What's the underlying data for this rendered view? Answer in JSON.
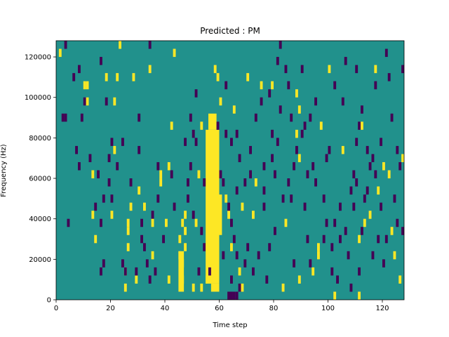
{
  "chart_data": {
    "type": "heatmap",
    "title": "Predicted : PM",
    "xlabel": "Time step",
    "ylabel": "Frequency (Hz)",
    "xlim": [
      0,
      128
    ],
    "ylim": [
      0,
      128000
    ],
    "x_ticks": [
      0,
      20,
      40,
      60,
      80,
      100,
      120
    ],
    "x_tick_labels": [
      "0",
      "20",
      "40",
      "60",
      "80",
      "100",
      "120"
    ],
    "y_ticks": [
      0,
      20000,
      40000,
      60000,
      80000,
      100000,
      120000
    ],
    "y_tick_labels": [
      "0",
      "20000",
      "40000",
      "60000",
      "80000",
      "100000",
      "120000"
    ],
    "background_value": 0,
    "colors": {
      "low": "#440154",
      "mid": "#21918c",
      "high": "#fde725"
    },
    "cell_height": 4000,
    "cells": [
      [
        1,
        120000,
        1
      ],
      [
        2,
        88000,
        -1
      ],
      [
        3,
        88000,
        -1
      ],
      [
        4,
        36000,
        -1
      ],
      [
        6,
        108000,
        -1
      ],
      [
        7,
        72000,
        -1
      ],
      [
        8,
        64000,
        -1
      ],
      [
        9,
        88000,
        -1
      ],
      [
        10,
        96000,
        -1
      ],
      [
        10,
        104000,
        1
      ],
      [
        11,
        96000,
        1
      ],
      [
        12,
        68000,
        -1
      ],
      [
        13,
        40000,
        1
      ],
      [
        14,
        28000,
        1
      ],
      [
        13,
        60000,
        1
      ],
      [
        14,
        44000,
        -1
      ],
      [
        15,
        60000,
        -1
      ],
      [
        16,
        36000,
        -1
      ],
      [
        16,
        12000,
        -1
      ],
      [
        17,
        16000,
        -1
      ],
      [
        17,
        48000,
        -1
      ],
      [
        18,
        96000,
        -1
      ],
      [
        18,
        108000,
        1
      ],
      [
        19,
        56000,
        -1
      ],
      [
        19,
        68000,
        -1
      ],
      [
        20,
        76000,
        -1
      ],
      [
        20,
        48000,
        -1
      ],
      [
        20,
        40000,
        1
      ],
      [
        21,
        96000,
        1
      ],
      [
        21,
        72000,
        1
      ],
      [
        22,
        64000,
        -1
      ],
      [
        22,
        108000,
        1
      ],
      [
        23,
        124000,
        1
      ],
      [
        24,
        76000,
        -1
      ],
      [
        24,
        16000,
        -1
      ],
      [
        25,
        4000,
        1
      ],
      [
        25,
        12000,
        1
      ],
      [
        26,
        24000,
        1
      ],
      [
        26,
        32000,
        1
      ],
      [
        26,
        36000,
        1
      ],
      [
        27,
        44000,
        1
      ],
      [
        27,
        56000,
        -1
      ],
      [
        28,
        108000,
        1
      ],
      [
        29,
        8000,
        1
      ],
      [
        29,
        12000,
        -1
      ],
      [
        30,
        88000,
        -1
      ],
      [
        30,
        72000,
        -1
      ],
      [
        30,
        52000,
        1
      ],
      [
        31,
        36000,
        -1
      ],
      [
        31,
        28000,
        -1
      ],
      [
        32,
        24000,
        -1
      ],
      [
        32,
        44000,
        1
      ],
      [
        33,
        16000,
        -1
      ],
      [
        34,
        8000,
        -1
      ],
      [
        34,
        112000,
        1
      ],
      [
        34,
        124000,
        -1
      ],
      [
        35,
        40000,
        -1
      ],
      [
        35,
        20000,
        1
      ],
      [
        36,
        12000,
        -1
      ],
      [
        37,
        64000,
        -1
      ],
      [
        37,
        48000,
        -1
      ],
      [
        38,
        56000,
        1
      ],
      [
        38,
        60000,
        1
      ],
      [
        39,
        28000,
        -1
      ],
      [
        40,
        36000,
        1
      ],
      [
        41,
        8000,
        1
      ],
      [
        41,
        64000,
        1
      ],
      [
        42,
        84000,
        1
      ],
      [
        43,
        44000,
        -1
      ],
      [
        43,
        120000,
        1
      ],
      [
        45,
        28000,
        1
      ],
      [
        45,
        20000,
        1
      ],
      [
        46,
        16000,
        1
      ],
      [
        46,
        8000,
        1
      ],
      [
        46,
        36000,
        1
      ],
      [
        47,
        40000,
        1
      ],
      [
        47,
        32000,
        1
      ],
      [
        47,
        24000,
        1
      ],
      [
        48,
        48000,
        -1
      ],
      [
        48,
        56000,
        -1
      ],
      [
        49,
        64000,
        -1
      ],
      [
        49,
        88000,
        -1
      ],
      [
        50,
        80000,
        -1
      ],
      [
        50,
        40000,
        -1
      ],
      [
        51,
        36000,
        1
      ],
      [
        51,
        76000,
        -1
      ],
      [
        51,
        100000,
        -1
      ],
      [
        52,
        60000,
        1
      ],
      [
        52,
        12000,
        -1
      ],
      [
        53,
        32000,
        -1
      ],
      [
        53,
        84000,
        1
      ],
      [
        53,
        4000,
        1
      ],
      [
        54,
        24000,
        -1
      ],
      [
        54,
        56000,
        -1
      ],
      [
        55,
        8000,
        1
      ],
      [
        56,
        12000,
        -1
      ],
      [
        58,
        112000,
        1
      ],
      [
        59,
        108000,
        1
      ],
      [
        59,
        84000,
        -1
      ],
      [
        60,
        60000,
        -1
      ],
      [
        60,
        96000,
        1
      ],
      [
        61,
        20000,
        -1
      ],
      [
        61,
        56000,
        -1
      ],
      [
        62,
        48000,
        1
      ],
      [
        62,
        80000,
        -1
      ],
      [
        62,
        104000,
        -1
      ],
      [
        63,
        40000,
        1
      ],
      [
        63,
        44000,
        -1
      ],
      [
        64,
        76000,
        -1
      ],
      [
        64,
        36000,
        -1
      ],
      [
        64,
        24000,
        1
      ],
      [
        64,
        8000,
        -1
      ],
      [
        65,
        92000,
        1
      ],
      [
        65,
        28000,
        -1
      ],
      [
        66,
        80000,
        -1
      ],
      [
        66,
        52000,
        -1
      ],
      [
        66,
        20000,
        -1
      ],
      [
        67,
        68000,
        -1
      ],
      [
        67,
        12000,
        1
      ],
      [
        68,
        44000,
        1
      ],
      [
        68,
        4000,
        1
      ],
      [
        69,
        56000,
        -1
      ],
      [
        69,
        16000,
        -1
      ],
      [
        70,
        24000,
        -1
      ],
      [
        70,
        108000,
        1
      ],
      [
        71,
        60000,
        -1
      ],
      [
        71,
        72000,
        -1
      ],
      [
        72,
        40000,
        1
      ],
      [
        72,
        12000,
        -1
      ],
      [
        73,
        56000,
        1
      ],
      [
        73,
        88000,
        -1
      ],
      [
        74,
        20000,
        -1
      ],
      [
        75,
        96000,
        -1
      ],
      [
        75,
        104000,
        1
      ],
      [
        76,
        64000,
        -1
      ],
      [
        76,
        44000,
        -1
      ],
      [
        76,
        52000,
        -1
      ],
      [
        77,
        8000,
        -1
      ],
      [
        78,
        24000,
        -1
      ],
      [
        78,
        100000,
        -1
      ],
      [
        79,
        80000,
        -1
      ],
      [
        79,
        68000,
        -1
      ],
      [
        80,
        60000,
        -1
      ],
      [
        80,
        32000,
        -1
      ],
      [
        81,
        76000,
        -1
      ],
      [
        81,
        116000,
        -1
      ],
      [
        82,
        124000,
        -1
      ],
      [
        82,
        92000,
        -1
      ],
      [
        83,
        48000,
        -1
      ],
      [
        83,
        4000,
        1
      ],
      [
        84,
        36000,
        1
      ],
      [
        84,
        112000,
        -1
      ],
      [
        85,
        104000,
        -1
      ],
      [
        85,
        56000,
        -1
      ],
      [
        86,
        48000,
        -1
      ],
      [
        86,
        88000,
        -1
      ],
      [
        87,
        64000,
        -1
      ],
      [
        87,
        16000,
        -1
      ],
      [
        88,
        80000,
        1
      ],
      [
        88,
        72000,
        -1
      ],
      [
        89,
        68000,
        1
      ],
      [
        89,
        8000,
        1
      ],
      [
        89,
        92000,
        1
      ],
      [
        90,
        112000,
        -1
      ],
      [
        90,
        80000,
        -1
      ],
      [
        91,
        44000,
        -1
      ],
      [
        91,
        84000,
        -1
      ],
      [
        92,
        60000,
        -1
      ],
      [
        92,
        28000,
        -1
      ],
      [
        93,
        16000,
        -1
      ],
      [
        93,
        88000,
        -1
      ],
      [
        94,
        64000,
        -1
      ],
      [
        94,
        12000,
        1
      ],
      [
        95,
        56000,
        -1
      ],
      [
        95,
        96000,
        -1
      ],
      [
        96,
        20000,
        1
      ],
      [
        96,
        24000,
        1
      ],
      [
        97,
        84000,
        1
      ],
      [
        98,
        48000,
        -1
      ],
      [
        98,
        28000,
        -1
      ],
      [
        99,
        36000,
        -1
      ],
      [
        99,
        68000,
        -1
      ],
      [
        100,
        72000,
        -1
      ],
      [
        100,
        112000,
        1
      ],
      [
        101,
        12000,
        -1
      ],
      [
        101,
        24000,
        -1
      ],
      [
        102,
        36000,
        -1
      ],
      [
        102,
        104000,
        -1
      ],
      [
        103,
        8000,
        -1
      ],
      [
        104,
        28000,
        -1
      ],
      [
        104,
        44000,
        -1
      ],
      [
        105,
        72000,
        1
      ],
      [
        105,
        96000,
        -1
      ],
      [
        106,
        32000,
        -1
      ],
      [
        106,
        116000,
        -1
      ],
      [
        107,
        20000,
        -1
      ],
      [
        108,
        4000,
        -1
      ],
      [
        108,
        52000,
        -1
      ],
      [
        109,
        44000,
        -1
      ],
      [
        109,
        60000,
        -1
      ],
      [
        110,
        56000,
        -1
      ],
      [
        110,
        76000,
        -1
      ],
      [
        110,
        112000,
        -1
      ],
      [
        111,
        12000,
        -1
      ],
      [
        111,
        28000,
        1
      ],
      [
        112,
        84000,
        1
      ],
      [
        112,
        32000,
        -1
      ],
      [
        112,
        92000,
        -1
      ],
      [
        113,
        36000,
        1
      ],
      [
        113,
        48000,
        -1
      ],
      [
        114,
        72000,
        -1
      ],
      [
        114,
        52000,
        -1
      ],
      [
        115,
        40000,
        1
      ],
      [
        115,
        64000,
        -1
      ],
      [
        116,
        68000,
        -1
      ],
      [
        116,
        20000,
        -1
      ],
      [
        117,
        60000,
        -1
      ],
      [
        117,
        104000,
        -1
      ],
      [
        118,
        28000,
        -1
      ],
      [
        118,
        52000,
        1
      ],
      [
        119,
        44000,
        -1
      ],
      [
        119,
        76000,
        -1
      ],
      [
        120,
        16000,
        -1
      ],
      [
        120,
        64000,
        1
      ],
      [
        121,
        28000,
        -1
      ],
      [
        121,
        120000,
        -1
      ],
      [
        122,
        60000,
        1
      ],
      [
        122,
        108000,
        -1
      ],
      [
        123,
        32000,
        1
      ],
      [
        123,
        88000,
        -1
      ],
      [
        124,
        20000,
        1
      ],
      [
        124,
        48000,
        -1
      ],
      [
        125,
        72000,
        -1
      ],
      [
        125,
        36000,
        -1
      ],
      [
        126,
        64000,
        -1
      ],
      [
        126,
        8000,
        1
      ],
      [
        127,
        112000,
        -1
      ],
      [
        127,
        32000,
        -1
      ],
      [
        127,
        68000,
        1
      ],
      [
        64,
        0,
        -1
      ],
      [
        65,
        0,
        -1
      ],
      [
        66,
        0,
        -1
      ],
      [
        102,
        0,
        1
      ],
      [
        111,
        0,
        1
      ],
      [
        50,
        4000,
        1
      ],
      [
        55,
        24000,
        1
      ],
      [
        67,
        4000,
        -1
      ],
      [
        88,
        100000,
        1
      ],
      [
        79,
        104000,
        1
      ],
      [
        111,
        84000,
        -1
      ],
      [
        117,
        112000,
        1
      ],
      [
        47,
        76000,
        -1
      ],
      [
        42,
        60000,
        -1
      ],
      [
        35,
        36000,
        1
      ],
      [
        25,
        12000,
        -1
      ],
      [
        16,
        116000,
        -1
      ],
      [
        11,
        104000,
        1
      ],
      [
        3,
        124000,
        -1
      ],
      [
        8,
        112000,
        -1
      ]
    ],
    "bands": [
      {
        "x_start": 55,
        "x_end": 60,
        "y_start": 8000,
        "y_end": 84000,
        "value": 1
      },
      {
        "x_start": 56,
        "x_end": 59,
        "y_start": 84000,
        "y_end": 92000,
        "value": 1
      },
      {
        "x_start": 57,
        "x_end": 60,
        "y_start": 4000,
        "y_end": 8000,
        "value": 1
      },
      {
        "x_start": 45,
        "x_end": 47,
        "y_start": 4000,
        "y_end": 24000,
        "value": 1
      },
      {
        "x_start": 60,
        "x_end": 61,
        "y_start": 32000,
        "y_end": 52000,
        "value": 1
      },
      {
        "x_start": 63,
        "x_end": 65,
        "y_start": 0,
        "y_end": 4000,
        "value": -1
      }
    ]
  }
}
